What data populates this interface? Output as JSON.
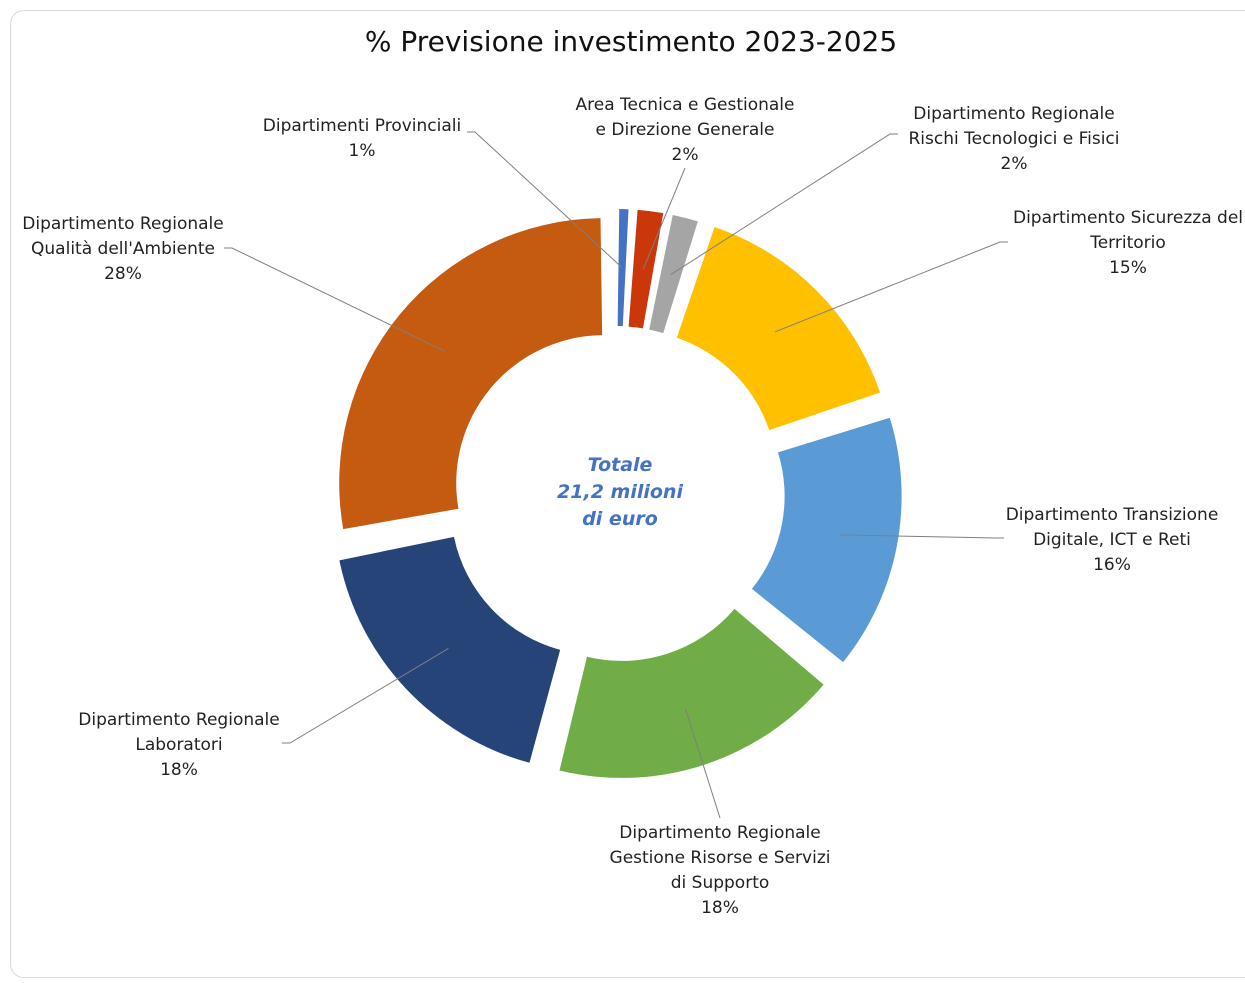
{
  "chart_data": {
    "type": "pie",
    "variant": "donut",
    "title": "% Previsione investimento 2023-2025",
    "center_label": [
      "Totale",
      "21,2 milioni",
      "di euro"
    ],
    "start_label_order": "clockwise from top",
    "slices": [
      {
        "name": [
          "Dipartimenti Provinciali"
        ],
        "label": "1%",
        "value": 1,
        "color": "#4472c4"
      },
      {
        "name": [
          "Area Tecnica e Gestionale",
          "e Direzione Generale"
        ],
        "label": "2%",
        "value": 2,
        "color": "#c9370b"
      },
      {
        "name": [
          "Dipartimento Regionale",
          "Rischi Tecnologici e Fisici"
        ],
        "label": "2%",
        "value": 2,
        "color": "#a5a5a5"
      },
      {
        "name": [
          "Dipartimento Sicurezza del",
          "Territorio"
        ],
        "label": "15%",
        "value": 15,
        "color": "#ffc000"
      },
      {
        "name": [
          "Dipartimento Transizione",
          "Digitale, ICT e Reti"
        ],
        "label": "16%",
        "value": 16,
        "color": "#5b9bd5"
      },
      {
        "name": [
          "Dipartimento Regionale",
          "Gestione Risorse e Servizi",
          "di Supporto"
        ],
        "label": "18%",
        "value": 18,
        "color": "#70ad47"
      },
      {
        "name": [
          "Dipartimento Regionale",
          "Laboratori"
        ],
        "label": "18%",
        "value": 18,
        "color": "#264478"
      },
      {
        "name": [
          "Dipartimento Regionale",
          "Qualità dell'Ambiente"
        ],
        "label": "28%",
        "value": 28,
        "color": "#c55a11"
      }
    ]
  }
}
